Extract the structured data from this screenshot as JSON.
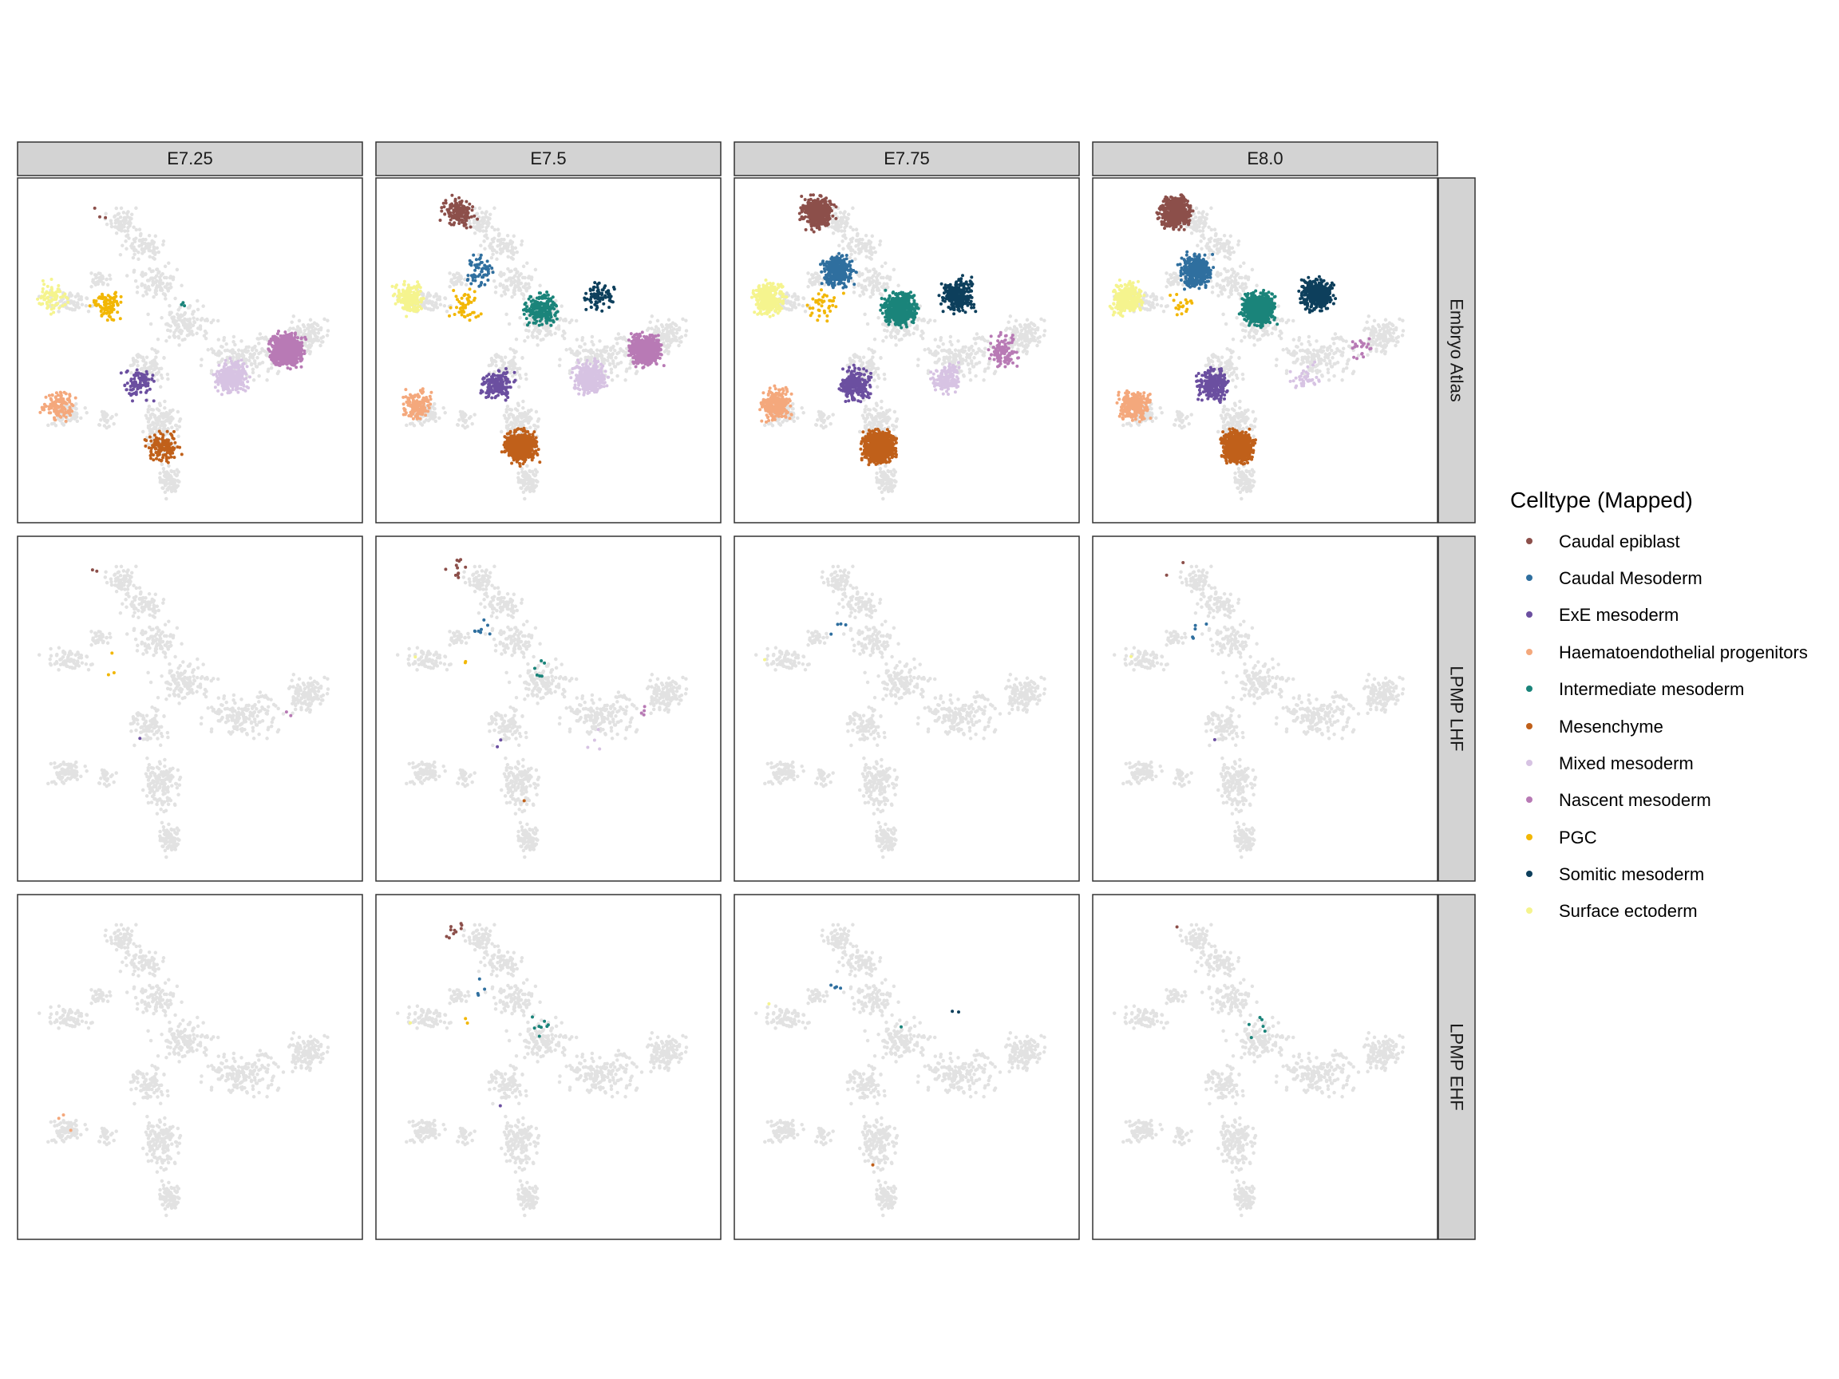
{
  "chart_data": {
    "type": "scatter",
    "title": "",
    "xlabel": "",
    "ylabel": "",
    "grid": false,
    "legend_placement": "right",
    "col_facets": [
      "E7.25",
      "E7.5",
      "E7.75",
      "E8.0"
    ],
    "row_facets": [
      "Embryo Atlas",
      "LPMP LHF",
      "LPMP EHF"
    ],
    "legend": {
      "title": "Celltype (Mapped)",
      "items": [
        {
          "name": "Caudal epiblast",
          "color": "#8c4f4a"
        },
        {
          "name": "Caudal Mesoderm",
          "color": "#2f6f9f"
        },
        {
          "name": "ExE mesoderm",
          "color": "#6b4fa0"
        },
        {
          "name": "Haematoendothelial progenitors",
          "color": "#f4a87c"
        },
        {
          "name": "Intermediate mesoderm",
          "color": "#1a847a"
        },
        {
          "name": "Mesenchyme",
          "color": "#c0601a"
        },
        {
          "name": "Mixed mesoderm",
          "color": "#d7c3e3"
        },
        {
          "name": "Nascent mesoderm",
          "color": "#b87ab5"
        },
        {
          "name": "PGC",
          "color": "#f2b705"
        },
        {
          "name": "Somitic mesoderm",
          "color": "#0d3f5c"
        },
        {
          "name": "Surface ectoderm",
          "color": "#f5f48e"
        }
      ]
    },
    "background_color": "#e2e2e2",
    "regions": {
      "Caudal epiblast": [
        0.24,
        0.1
      ],
      "Caudal Mesoderm": [
        0.3,
        0.27
      ],
      "ExE mesoderm": [
        0.35,
        0.6
      ],
      "Haematoendothelial progenitors": [
        0.12,
        0.66
      ],
      "Intermediate mesoderm": [
        0.48,
        0.38
      ],
      "Mesenchyme": [
        0.42,
        0.78
      ],
      "Mixed mesoderm": [
        0.62,
        0.58
      ],
      "Nascent mesoderm": [
        0.78,
        0.5
      ],
      "PGC": [
        0.26,
        0.37
      ],
      "Somitic mesoderm": [
        0.65,
        0.34
      ],
      "Surface ectoderm": [
        0.1,
        0.35
      ]
    },
    "panels": [
      {
        "row": 0,
        "col": 0,
        "counts": {
          "Caudal epiblast": 3,
          "ExE mesoderm": 90,
          "Haematoendothelial progenitors": 130,
          "Intermediate mesoderm": 3,
          "Mesenchyme": 140,
          "Mixed mesoderm": 320,
          "Nascent mesoderm": 900,
          "PGC": 85,
          "Surface ectoderm": 75
        }
      },
      {
        "row": 0,
        "col": 1,
        "counts": {
          "Caudal epiblast": 160,
          "Caudal Mesoderm": 60,
          "ExE mesoderm": 170,
          "Haematoendothelial progenitors": 150,
          "Intermediate mesoderm": 220,
          "Mesenchyme": 600,
          "Mixed mesoderm": 420,
          "Nascent mesoderm": 520,
          "PGC": 50,
          "Somitic mesoderm": 80,
          "Surface ectoderm": 200
        }
      },
      {
        "row": 0,
        "col": 2,
        "counts": {
          "Caudal epiblast": 380,
          "Caudal Mesoderm": 320,
          "ExE mesoderm": 220,
          "Haematoendothelial progenitors": 260,
          "Intermediate mesoderm": 600,
          "Mesenchyme": 950,
          "Mixed mesoderm": 150,
          "Nascent mesoderm": 110,
          "PGC": 40,
          "Somitic mesoderm": 260,
          "Surface ectoderm": 300
        }
      },
      {
        "row": 0,
        "col": 3,
        "counts": {
          "Caudal epiblast": 500,
          "Caudal Mesoderm": 360,
          "ExE mesoderm": 260,
          "Haematoendothelial progenitors": 230,
          "Intermediate mesoderm": 800,
          "Mesenchyme": 800,
          "Mixed mesoderm": 40,
          "Nascent mesoderm": 20,
          "PGC": 20,
          "Somitic mesoderm": 400,
          "Surface ectoderm": 320
        }
      },
      {
        "row": 1,
        "col": 0,
        "counts": {
          "Caudal epiblast": 2,
          "ExE mesoderm": 1,
          "Nascent mesoderm": 2,
          "PGC": 3
        }
      },
      {
        "row": 1,
        "col": 1,
        "counts": {
          "Caudal epiblast": 12,
          "Caudal Mesoderm": 8,
          "ExE mesoderm": 2,
          "Intermediate mesoderm": 6,
          "Mesenchyme": 1,
          "Mixed mesoderm": 4,
          "Nascent mesoderm": 4,
          "PGC": 2,
          "Surface ectoderm": 1
        }
      },
      {
        "row": 1,
        "col": 2,
        "counts": {
          "Caudal Mesoderm": 4,
          "Surface ectoderm": 1
        }
      },
      {
        "row": 1,
        "col": 3,
        "counts": {
          "Caudal epiblast": 2,
          "Caudal Mesoderm": 5,
          "ExE mesoderm": 1,
          "Surface ectoderm": 1
        }
      },
      {
        "row": 2,
        "col": 0,
        "counts": {
          "Haematoendothelial progenitors": 3
        }
      },
      {
        "row": 2,
        "col": 1,
        "counts": {
          "Caudal epiblast": 10,
          "Caudal Mesoderm": 4,
          "ExE mesoderm": 1,
          "Intermediate mesoderm": 8,
          "PGC": 2,
          "Surface ectoderm": 1
        }
      },
      {
        "row": 2,
        "col": 2,
        "counts": {
          "Caudal Mesoderm": 4,
          "Intermediate mesoderm": 1,
          "Mesenchyme": 1,
          "Somitic mesoderm": 2,
          "Surface ectoderm": 1
        }
      },
      {
        "row": 2,
        "col": 3,
        "counts": {
          "Caudal epiblast": 1,
          "Intermediate mesoderm": 6
        }
      }
    ]
  }
}
